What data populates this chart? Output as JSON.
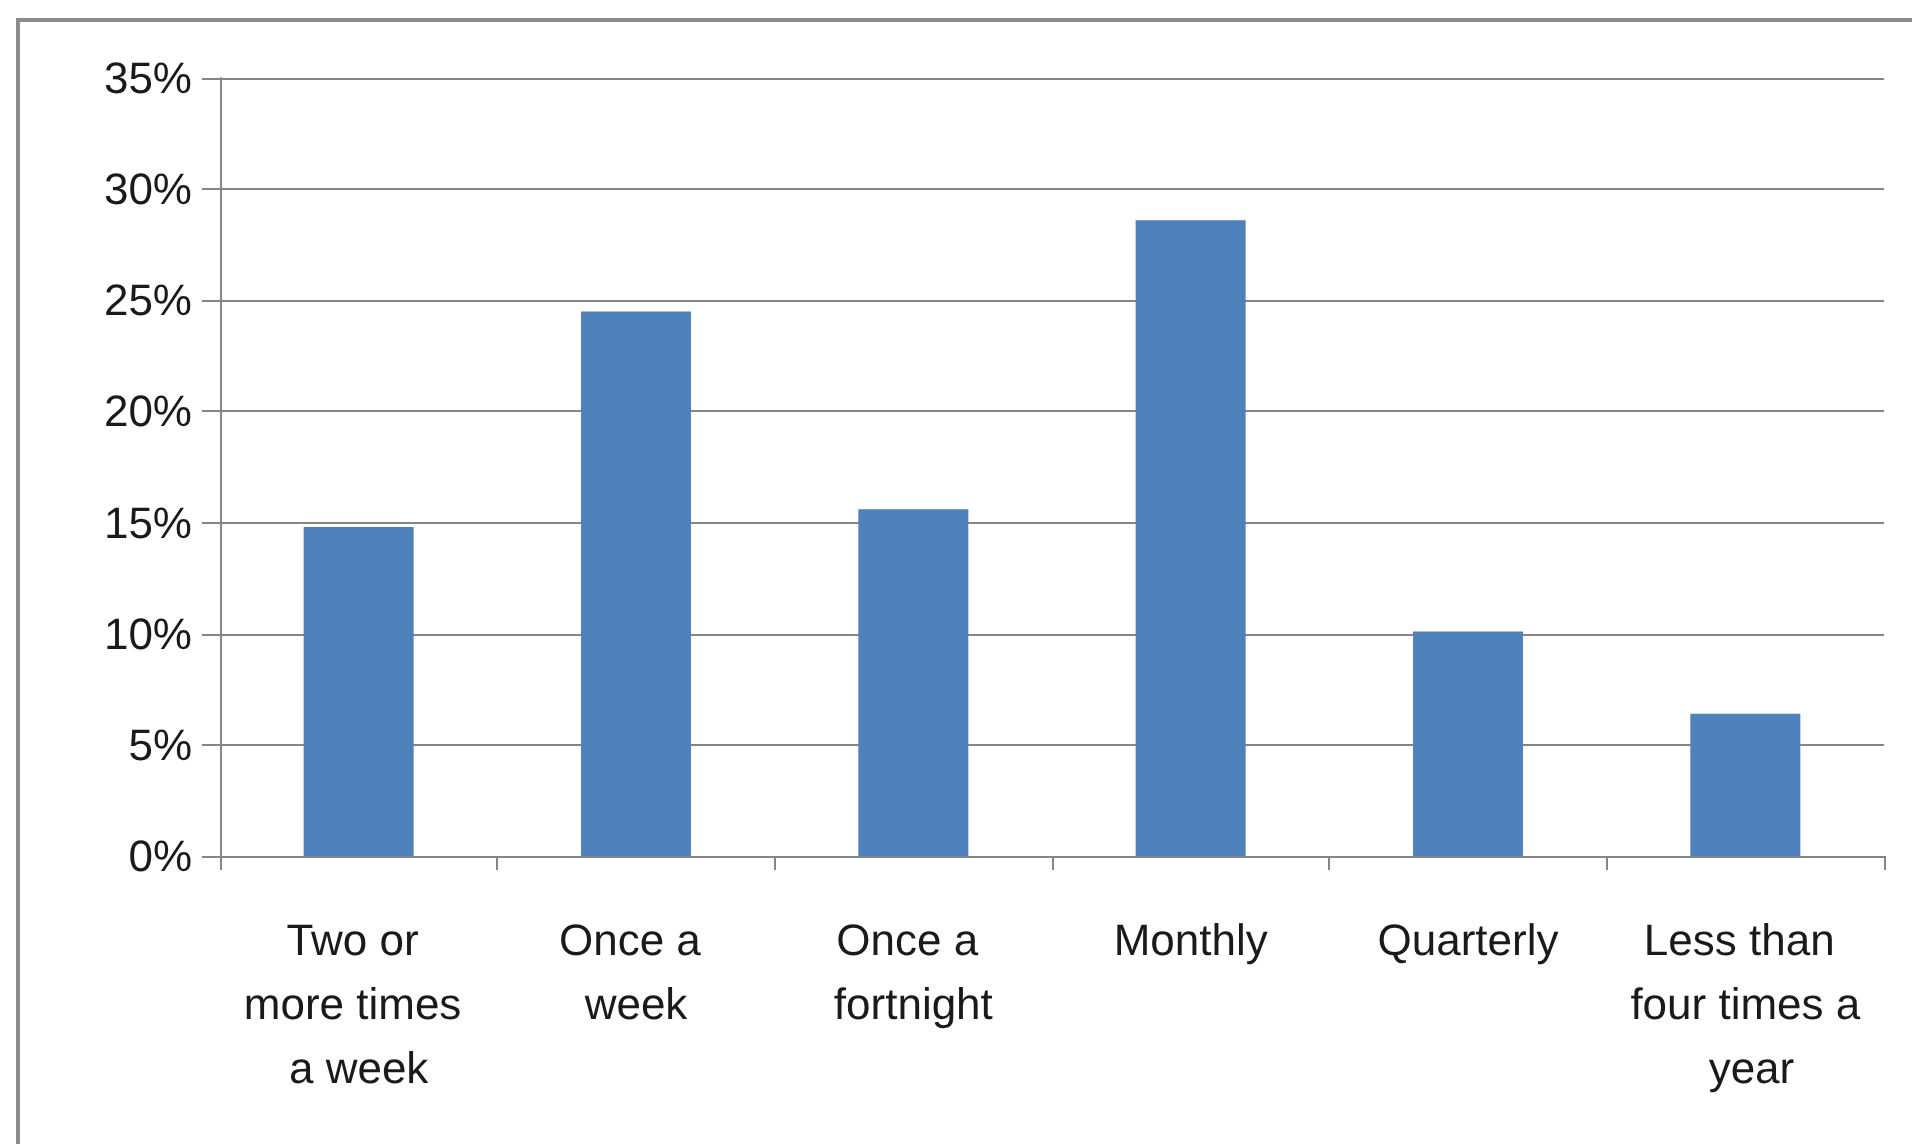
{
  "chart_data": {
    "type": "bar",
    "categories": [
      "Two or more times a week",
      "Once a week",
      "Once a fortnight",
      "Monthly",
      "Quarterly",
      "Less than four times a year"
    ],
    "values": [
      14.8,
      24.5,
      15.6,
      28.6,
      10.1,
      6.4
    ],
    "color": "#4f81bd",
    "ylim": [
      0,
      35
    ],
    "yticks": [
      {
        "value": 0,
        "label": "0%"
      },
      {
        "value": 5,
        "label": "5%"
      },
      {
        "value": 10,
        "label": "10%"
      },
      {
        "value": 15,
        "label": "15%"
      },
      {
        "value": 20,
        "label": "20%"
      },
      {
        "value": 25,
        "label": "25%"
      },
      {
        "value": 30,
        "label": "30%"
      },
      {
        "value": 35,
        "label": "35%"
      }
    ],
    "grid": "y"
  }
}
